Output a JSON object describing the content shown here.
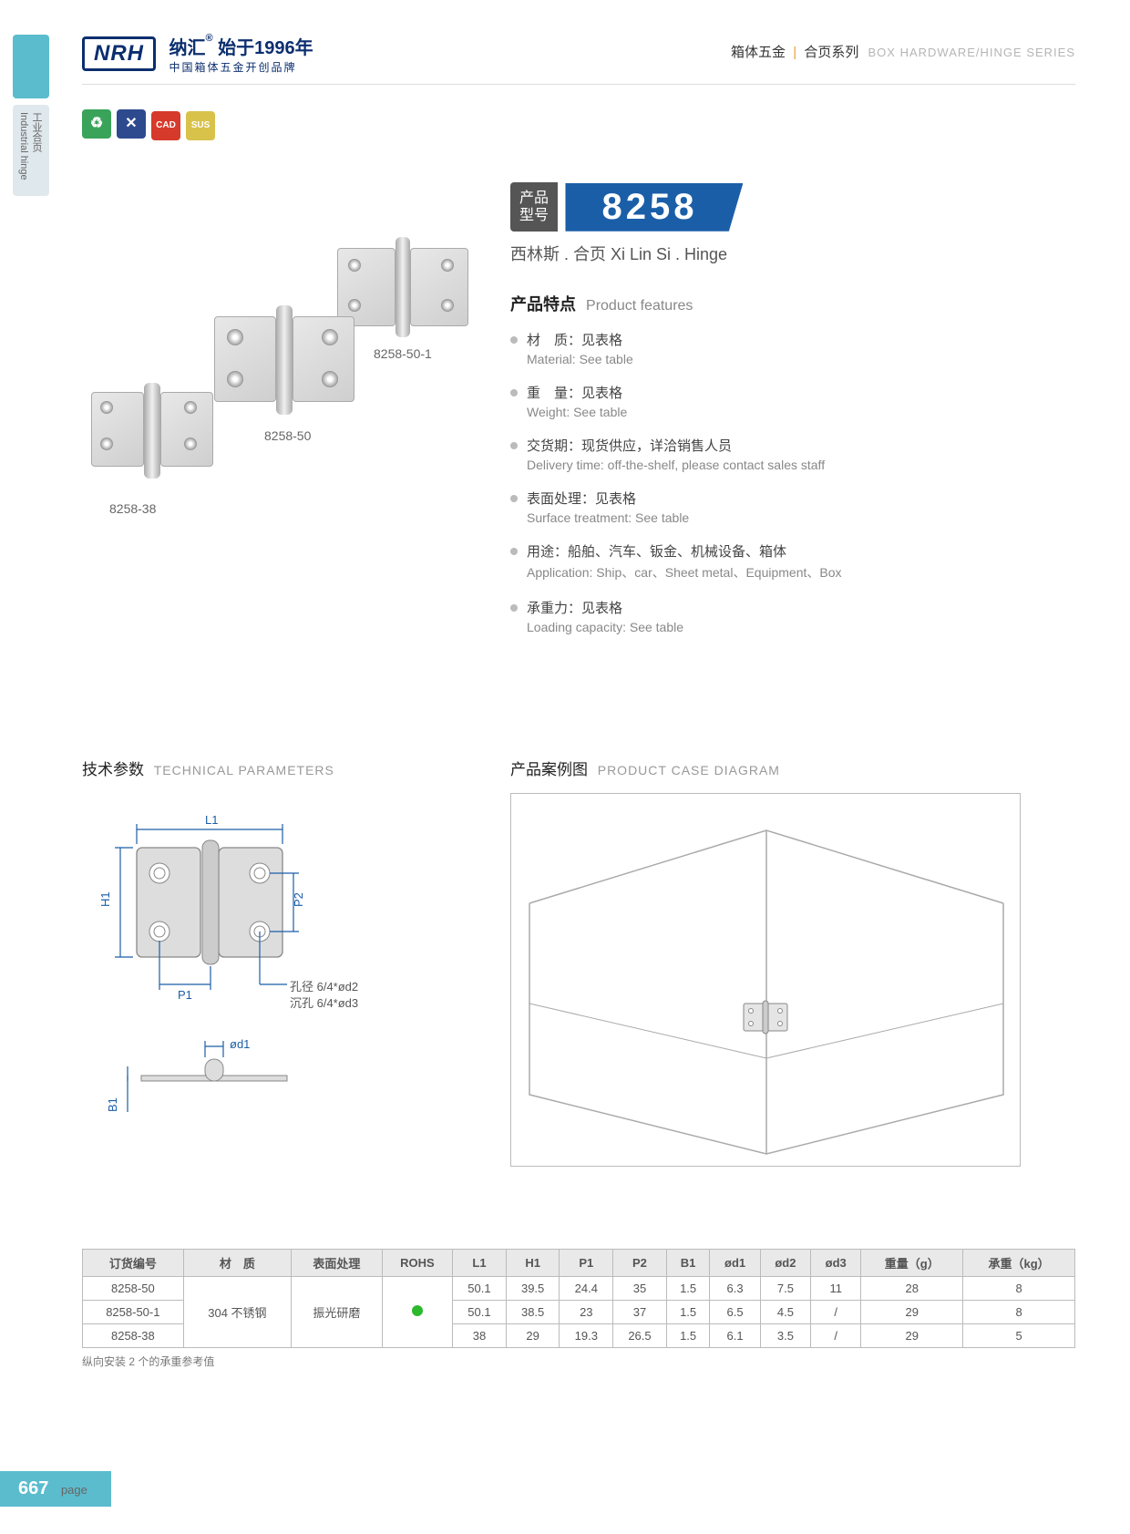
{
  "header": {
    "logo_mark": "NRH",
    "brand_cn": "纳汇",
    "since": "始于1996年",
    "tagline": "中国箱体五金开创品牌",
    "right_cn1": "箱体五金",
    "right_cn2": "合页系列",
    "right_en": "BOX HARDWARE/HINGE SERIES"
  },
  "side_tab2": "工业合页 Industrial hinge",
  "icon_strip": {
    "items": [
      {
        "bg": "#3aa35a",
        "glyph": "♻"
      },
      {
        "bg": "#2e4a8f",
        "glyph": "✕"
      },
      {
        "bg": "#d63a2b",
        "glyph": "CAD"
      },
      {
        "bg": "#d8c24a",
        "glyph": "SUS"
      }
    ]
  },
  "product": {
    "label": "产品\n型号",
    "number": "8258",
    "name": "西林斯 . 合页   Xi Lin Si . Hinge"
  },
  "features": {
    "title_cn": "产品特点",
    "title_en": "Product features",
    "items": [
      {
        "cn": "材　质：见表格",
        "en": "Material: See table"
      },
      {
        "cn": "重　量：见表格",
        "en": "Weight: See table"
      },
      {
        "cn": "交货期：现货供应，详洽销售人员",
        "en": "Delivery time: off-the-shelf, please contact sales staff"
      },
      {
        "cn": "表面处理：见表格",
        "en": "Surface treatment:  See table"
      },
      {
        "cn": "用途：船舶、汽车、钣金、机械设备、箱体",
        "en": "Application: Ship、car、Sheet metal、Equipment、Box"
      },
      {
        "cn": "承重力：见表格",
        "en": "Loading capacity: See table"
      }
    ]
  },
  "variant_labels": [
    "8258-50-1",
    "8258-50",
    "8258-38"
  ],
  "sections": {
    "tech_cn": "技术参数",
    "tech_en": "TECHNICAL PARAMETERS",
    "case_cn": "产品案例图",
    "case_en": "PRODUCT CASE DIAGRAM"
  },
  "dims": {
    "L1": "L1",
    "H1": "H1",
    "P1": "P1",
    "P2": "P2",
    "B1": "B1",
    "od1": "ød1",
    "note1": "孔径 6/4*ød2",
    "note2": "沉孔 6/4*ød3"
  },
  "table": {
    "headers": [
      "订货编号",
      "材　质",
      "表面处理",
      "ROHS",
      "L1",
      "H1",
      "P1",
      "P2",
      "B1",
      "ød1",
      "ød2",
      "ød3",
      "重量（g）",
      "承重（kg）"
    ],
    "material": "304 不锈钢",
    "surface": "振光研磨",
    "rows": [
      {
        "id": "8258-50",
        "vals": [
          "50.1",
          "39.5",
          "24.4",
          "35",
          "1.5",
          "6.3",
          "7.5",
          "11",
          "28",
          "8"
        ]
      },
      {
        "id": "8258-50-1",
        "vals": [
          "50.1",
          "38.5",
          "23",
          "37",
          "1.5",
          "6.5",
          "4.5",
          "/",
          "29",
          "8"
        ]
      },
      {
        "id": "8258-38",
        "vals": [
          "38",
          "29",
          "19.3",
          "26.5",
          "1.5",
          "6.1",
          "3.5",
          "/",
          "29",
          "5"
        ]
      }
    ],
    "note": "纵向安装 2 个的承重参考值"
  },
  "footer": {
    "page": "667",
    "label": "page"
  }
}
